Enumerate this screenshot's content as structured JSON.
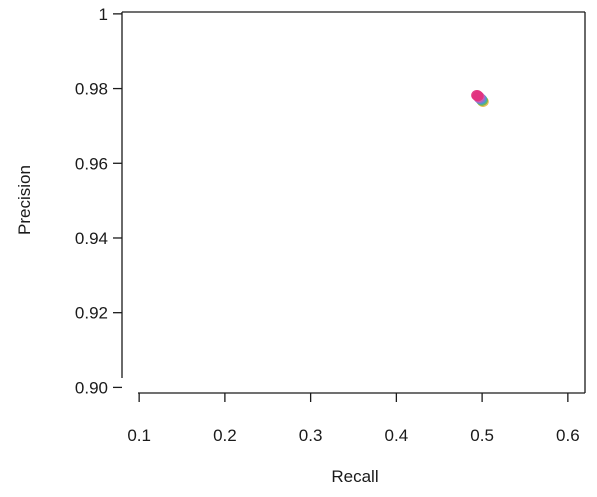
{
  "chart_data": {
    "type": "scatter",
    "title": "",
    "xlabel": "Recall",
    "ylabel": "Precision",
    "xlim": [
      0.08,
      0.62
    ],
    "ylim": [
      0.8985,
      1.0005
    ],
    "x_ticks": [
      0.1,
      0.2,
      0.3,
      0.4,
      0.5,
      0.6
    ],
    "x_tick_labels": [
      "0.1",
      "0.2",
      "0.3",
      "0.4",
      "0.5",
      "0.6"
    ],
    "y_ticks": [
      0.9,
      0.92,
      0.94,
      0.96,
      0.98,
      1.0
    ],
    "y_tick_labels": [
      "0.90",
      "0.92",
      "0.94",
      "0.96",
      "0.98",
      "1"
    ],
    "grid": false,
    "legend": "none",
    "points": [
      {
        "x": 0.501,
        "y": 0.9765,
        "color": "#e8b84a"
      },
      {
        "x": 0.5,
        "y": 0.9768,
        "color": "#6fb64f"
      },
      {
        "x": 0.499,
        "y": 0.9771,
        "color": "#3fa7b5"
      },
      {
        "x": 0.498,
        "y": 0.9773,
        "color": "#5a8fd6"
      },
      {
        "x": 0.497,
        "y": 0.9775,
        "color": "#9b6fc9"
      },
      {
        "x": 0.496,
        "y": 0.9778,
        "color": "#d45fb0"
      },
      {
        "x": 0.495,
        "y": 0.978,
        "color": "#e2337f"
      },
      {
        "x": 0.494,
        "y": 0.9782,
        "color": "#e2337f"
      }
    ]
  }
}
